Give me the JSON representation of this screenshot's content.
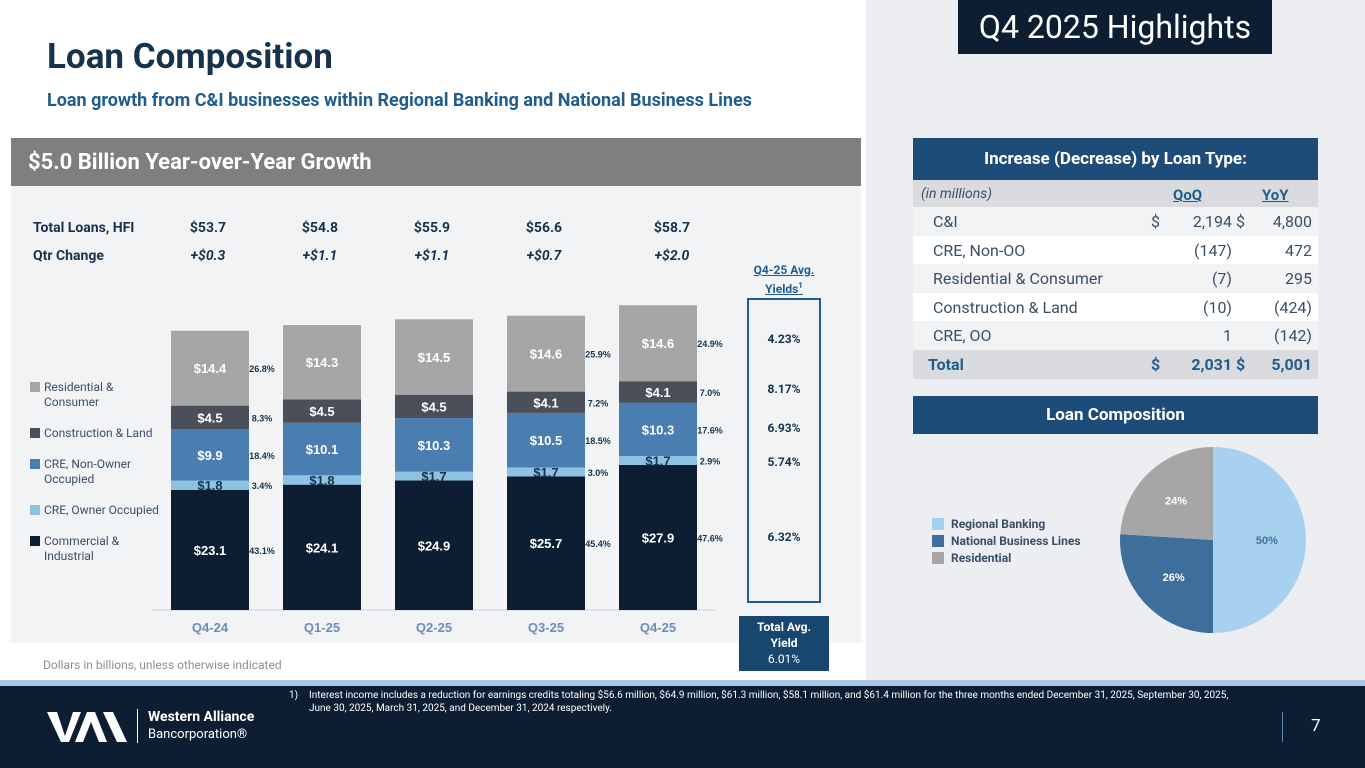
{
  "header": {
    "title": "Loan Composition",
    "subtitle": "Loan growth from C&I businesses within Regional Banking and National Business Lines",
    "highlights": "Q4 2025 Highlights",
    "growth_banner": "$5.0 Billion Year-over-Year Growth"
  },
  "totals": {
    "total_label": "Total Loans, HFI",
    "change_label": "Qtr Change",
    "totals": [
      "$53.7",
      "$54.8",
      "$55.9",
      "$56.6",
      "$58.7"
    ],
    "changes": [
      "+$0.3",
      "+$1.1",
      "+$1.1",
      "+$0.7",
      "+$2.0"
    ]
  },
  "chart_data": [
    {
      "type": "bar",
      "stacked": true,
      "categories": [
        "Q4-24",
        "Q1-25",
        "Q2-25",
        "Q3-25",
        "Q4-25"
      ],
      "series": [
        {
          "name": "Commercial & Industrial",
          "values": [
            23.1,
            24.1,
            24.9,
            25.7,
            27.9
          ],
          "labels": [
            "$23.1",
            "$24.1",
            "$24.9",
            "$25.7",
            "$27.9"
          ],
          "color": "#0d1e32"
        },
        {
          "name": "CRE, Owner Occupied",
          "values": [
            1.8,
            1.8,
            1.7,
            1.7,
            1.7
          ],
          "labels": [
            "$1.8",
            "$1.8",
            "$1.7",
            "$1.7",
            "$1.7"
          ],
          "color": "#8fc1e3"
        },
        {
          "name": "CRE, Non-Owner Occupied",
          "values": [
            9.9,
            10.1,
            10.3,
            10.5,
            10.3
          ],
          "labels": [
            "$9.9",
            "$10.1",
            "$10.3",
            "$10.5",
            "$10.3"
          ],
          "color": "#4a7eb0"
        },
        {
          "name": "Construction & Land",
          "values": [
            4.5,
            4.5,
            4.5,
            4.1,
            4.1
          ],
          "labels": [
            "$4.5",
            "$4.5",
            "$4.5",
            "$4.1",
            "$4.1"
          ],
          "color": "#4a4f5a"
        },
        {
          "name": "Residential & Consumer",
          "values": [
            14.4,
            14.3,
            14.5,
            14.6,
            14.6
          ],
          "labels": [
            "$14.4",
            "$14.3",
            "$14.5",
            "$14.6",
            "$14.6"
          ],
          "color": "#a6a6a6"
        }
      ],
      "percent_labels": [
        {
          "category": "Q4-24",
          "values": [
            "43.1%",
            "3.4%",
            "18.4%",
            "8.3%",
            "26.8%"
          ]
        },
        {
          "category": "Q3-25",
          "values": [
            "45.4%",
            "3.0%",
            "18.5%",
            "7.2%",
            "25.9%"
          ]
        },
        {
          "category": "Q4-25",
          "values": [
            "47.6%",
            "2.9%",
            "17.6%",
            "7.0%",
            "24.9%"
          ]
        }
      ],
      "legend": [
        {
          "label": "Residential & Consumer",
          "color": "#a6a6a6"
        },
        {
          "label": "Construction & Land",
          "color": "#4a4f5a"
        },
        {
          "label": "CRE, Non-Owner Occupied",
          "color": "#4a7eb0"
        },
        {
          "label": "CRE, Owner Occupied",
          "color": "#8fc1e3"
        },
        {
          "label": "Commercial & Industrial",
          "color": "#0d1e32"
        }
      ],
      "legend_position": "left",
      "ylim": [
        0,
        60
      ],
      "title": "",
      "xlabel": "",
      "ylabel": ""
    },
    {
      "type": "pie",
      "slices": [
        {
          "label": "Regional Banking",
          "value": 50,
          "display": "50%",
          "color": "#a8d0ef"
        },
        {
          "label": "National Business Lines",
          "value": 26,
          "display": "26%",
          "color": "#3e6e9b"
        },
        {
          "label": "Residential",
          "value": 24,
          "display": "24%",
          "color": "#a6a6a6"
        }
      ],
      "legend_position": "left"
    }
  ],
  "yields": {
    "title": "Q4-25 Avg. Yields",
    "superscript": "1",
    "values": [
      "4.23%",
      "8.17%",
      "6.93%",
      "5.74%",
      "6.32%"
    ],
    "total_label_1": "Total Avg.",
    "total_label_2": "Yield",
    "total_value": "6.01%"
  },
  "units_note": "Dollars in billions, unless otherwise indicated",
  "loan_table": {
    "header": "Increase (Decrease) by Loan Type:",
    "units": "(in millions)",
    "col_qoq": "QoQ",
    "col_yoy": "YoY",
    "rows": [
      {
        "label": "C&I",
        "cur1": "$",
        "qoq": "2,194",
        "cur2": "$",
        "yoy": "4,800"
      },
      {
        "label": "CRE, Non-OO",
        "cur1": "",
        "qoq": "(147)",
        "cur2": "",
        "yoy": "472"
      },
      {
        "label": "Residential & Consumer",
        "cur1": "",
        "qoq": "(7)",
        "cur2": "",
        "yoy": "295"
      },
      {
        "label": "Construction & Land",
        "cur1": "",
        "qoq": "(10)",
        "cur2": "",
        "yoy": "(424)"
      },
      {
        "label": "CRE, OO",
        "cur1": "",
        "qoq": "1",
        "cur2": "",
        "yoy": "(142)"
      }
    ],
    "total": {
      "label": "Total",
      "cur1": "$",
      "qoq": "2,031",
      "cur2": "$",
      "yoy": "5,001"
    }
  },
  "pie_header": "Loan Composition",
  "footnote": {
    "num": "1)",
    "text": "Interest income includes a reduction for earnings credits totaling $56.6 million, $64.9 million, $61.3 million, $58.1 million, and $61.4 million for the three months ended December 31, 2025, September 30, 2025, June 30, 2025, March 31, 2025, and December 31, 2024 respectively."
  },
  "logo": {
    "line1": "Western Alliance",
    "line2": "Bancorporation®"
  },
  "page_number": "7"
}
